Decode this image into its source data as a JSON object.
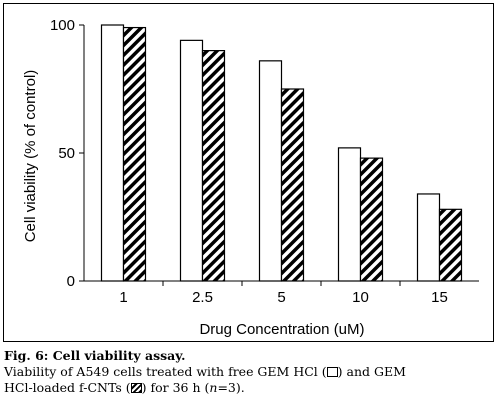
{
  "chart_data": {
    "type": "bar",
    "categories": [
      "1",
      "2.5",
      "5",
      "10",
      "15"
    ],
    "series": [
      {
        "values": [
          100,
          94,
          86,
          52,
          34
        ],
        "color": "#ffffff",
        "pattern": "solid"
      },
      {
        "values": [
          99,
          90,
          75,
          48,
          28
        ],
        "color": "#000000",
        "pattern": "diagonal-hatch"
      }
    ],
    "xlabel": "Drug Concentration (uM)",
    "ylabel": "Cell viability (% of control)",
    "yticks": [
      "0",
      "50",
      "100"
    ],
    "ylim": [
      0,
      100
    ],
    "grid": false
  },
  "caption": {
    "figure_label": "Fig. 6: Cell viability assay.",
    "line2_a": "Viability of A549 cells treated with free GEM HCl (",
    "line2_b": ") and GEM",
    "line3_a": "HCl-loaded f-CNTs (",
    "line3_b": ") for 36 h (",
    "line3_n": "n",
    "line3_c": "=3)."
  }
}
